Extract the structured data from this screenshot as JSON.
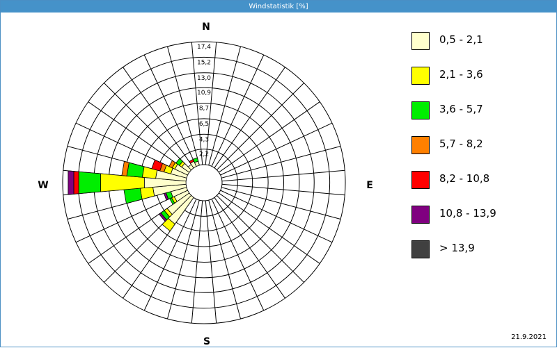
{
  "window": {
    "title": "Windstatistik [%]"
  },
  "date_stamp": "21.9.2021",
  "chart_data": {
    "type": "windrose",
    "title": "Windstatistik [%]",
    "unit": "%",
    "compass_labels": {
      "north": "N",
      "east": "E",
      "south": "S",
      "west": "W"
    },
    "radial_ticks": [
      2.2,
      4.3,
      6.5,
      8.7,
      10.9,
      13.0,
      15.2,
      17.4
    ],
    "radial_tick_labels": [
      "2,2",
      "4,3",
      "6,5",
      "8,7",
      "10,9",
      "13,0",
      "15,2",
      "17,4"
    ],
    "r_max": 17.4,
    "sectors": 36,
    "grid": true,
    "legend_position": "right",
    "speed_classes": [
      {
        "label": "0,5 - 2,1",
        "color": "#ffffcc"
      },
      {
        "label": "2,1 - 3,6",
        "color": "#ffff00"
      },
      {
        "label": "3,6 - 5,7",
        "color": "#00ee00"
      },
      {
        "label": "5,7 - 8,2",
        "color": "#ff8000"
      },
      {
        "label": "8,2 - 10,8",
        "color": "#ff0000"
      },
      {
        "label": "10,8 - 13,9",
        "color": "#800080"
      },
      {
        "label": " > 13,9",
        "color": "#404040"
      }
    ],
    "directions": [
      {
        "dir": 220,
        "values": [
          4.6,
          1.2,
          0.0,
          0.0,
          0.0,
          0.0,
          0.0
        ]
      },
      {
        "dir": 230,
        "values": [
          3.8,
          0.5,
          0.6,
          0.0,
          0.0,
          0.3,
          0.0
        ]
      },
      {
        "dir": 240,
        "values": [
          2.1,
          0.4,
          0.3,
          0.0,
          0.0,
          0.0,
          0.0
        ]
      },
      {
        "dir": 250,
        "values": [
          2.3,
          0.0,
          0.7,
          0.0,
          0.0,
          0.3,
          0.0
        ]
      },
      {
        "dir": 260,
        "values": [
          4.7,
          1.8,
          2.3,
          0.0,
          0.0,
          0.0,
          0.0
        ]
      },
      {
        "dir": 270,
        "values": [
          5.9,
          6.2,
          3.1,
          0.0,
          0.7,
          0.8,
          0.0
        ]
      },
      {
        "dir": 280,
        "values": [
          4.3,
          1.9,
          2.2,
          0.7,
          0.0,
          0.0,
          0.0
        ]
      },
      {
        "dir": 290,
        "values": [
          2.3,
          1.0,
          0.0,
          0.6,
          1.2,
          0.0,
          0.0
        ]
      },
      {
        "dir": 300,
        "values": [
          2.0,
          0.4,
          0.0,
          0.5,
          0.0,
          0.0,
          0.0
        ]
      },
      {
        "dir": 310,
        "values": [
          1.3,
          0.4,
          0.6,
          0.0,
          0.0,
          0.0,
          0.0
        ]
      },
      {
        "dir": 320,
        "values": [
          0.6,
          0.0,
          0.0,
          0.0,
          0.0,
          0.0,
          0.0
        ]
      },
      {
        "dir": 330,
        "values": [
          0.8,
          0.0,
          0.0,
          0.0,
          0.3,
          0.0,
          0.0
        ]
      },
      {
        "dir": 340,
        "values": [
          0.6,
          0.0,
          0.5,
          0.0,
          0.0,
          0.0,
          0.0
        ]
      }
    ]
  }
}
